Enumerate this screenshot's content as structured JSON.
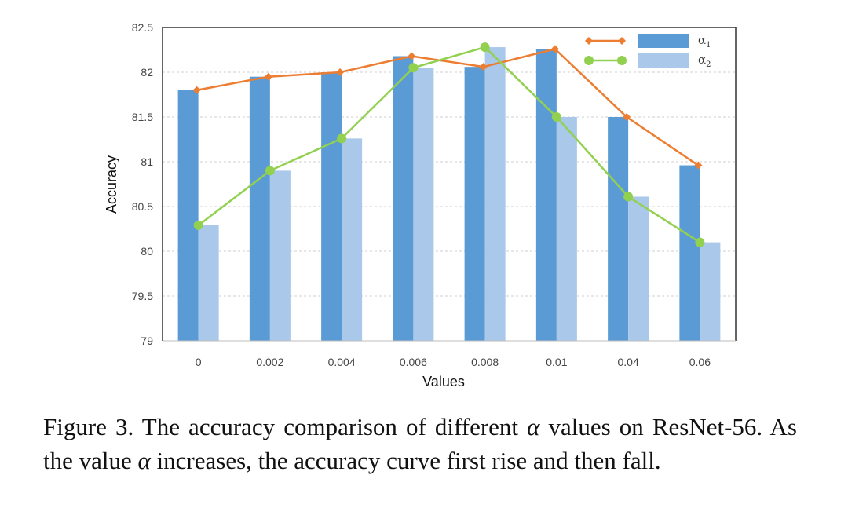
{
  "chart_data": {
    "type": "bar",
    "categories": [
      "0",
      "0.002",
      "0.004",
      "0.006",
      "0.008",
      "0.01",
      "0.04",
      "0.06"
    ],
    "series": [
      {
        "name": "α1",
        "legend_label": "α",
        "legend_sub": "1",
        "values": [
          81.8,
          81.95,
          82.0,
          82.18,
          82.06,
          82.26,
          81.5,
          80.96
        ],
        "bar_color": "#5b9bd5",
        "line_color": "#ed7d31"
      },
      {
        "name": "α2",
        "legend_label": "α",
        "legend_sub": "2",
        "values": [
          80.29,
          80.9,
          81.26,
          82.05,
          82.28,
          81.5,
          80.61,
          80.1
        ],
        "bar_color": "#a9c8ea",
        "line_color": "#92d050"
      }
    ],
    "title": "",
    "xlabel": "Values",
    "ylabel": "Accuracy",
    "ylim": [
      79,
      82.5
    ],
    "yticks": [
      79,
      79.5,
      80,
      80.5,
      81,
      81.5,
      82,
      82.5
    ],
    "ytick_labels": [
      "79",
      "79.5",
      "80",
      "80.5",
      "81",
      "81.5",
      "82",
      "82.5"
    ],
    "grid": true,
    "legend_position": "top-right"
  },
  "caption": {
    "prefix": "Figure 3. The accuracy comparison of different ",
    "alpha1": "α",
    "middle": " values on ResNet-56. As the value ",
    "alpha2": "α",
    "suffix": " increases, the accuracy curve first rise and then fall."
  }
}
